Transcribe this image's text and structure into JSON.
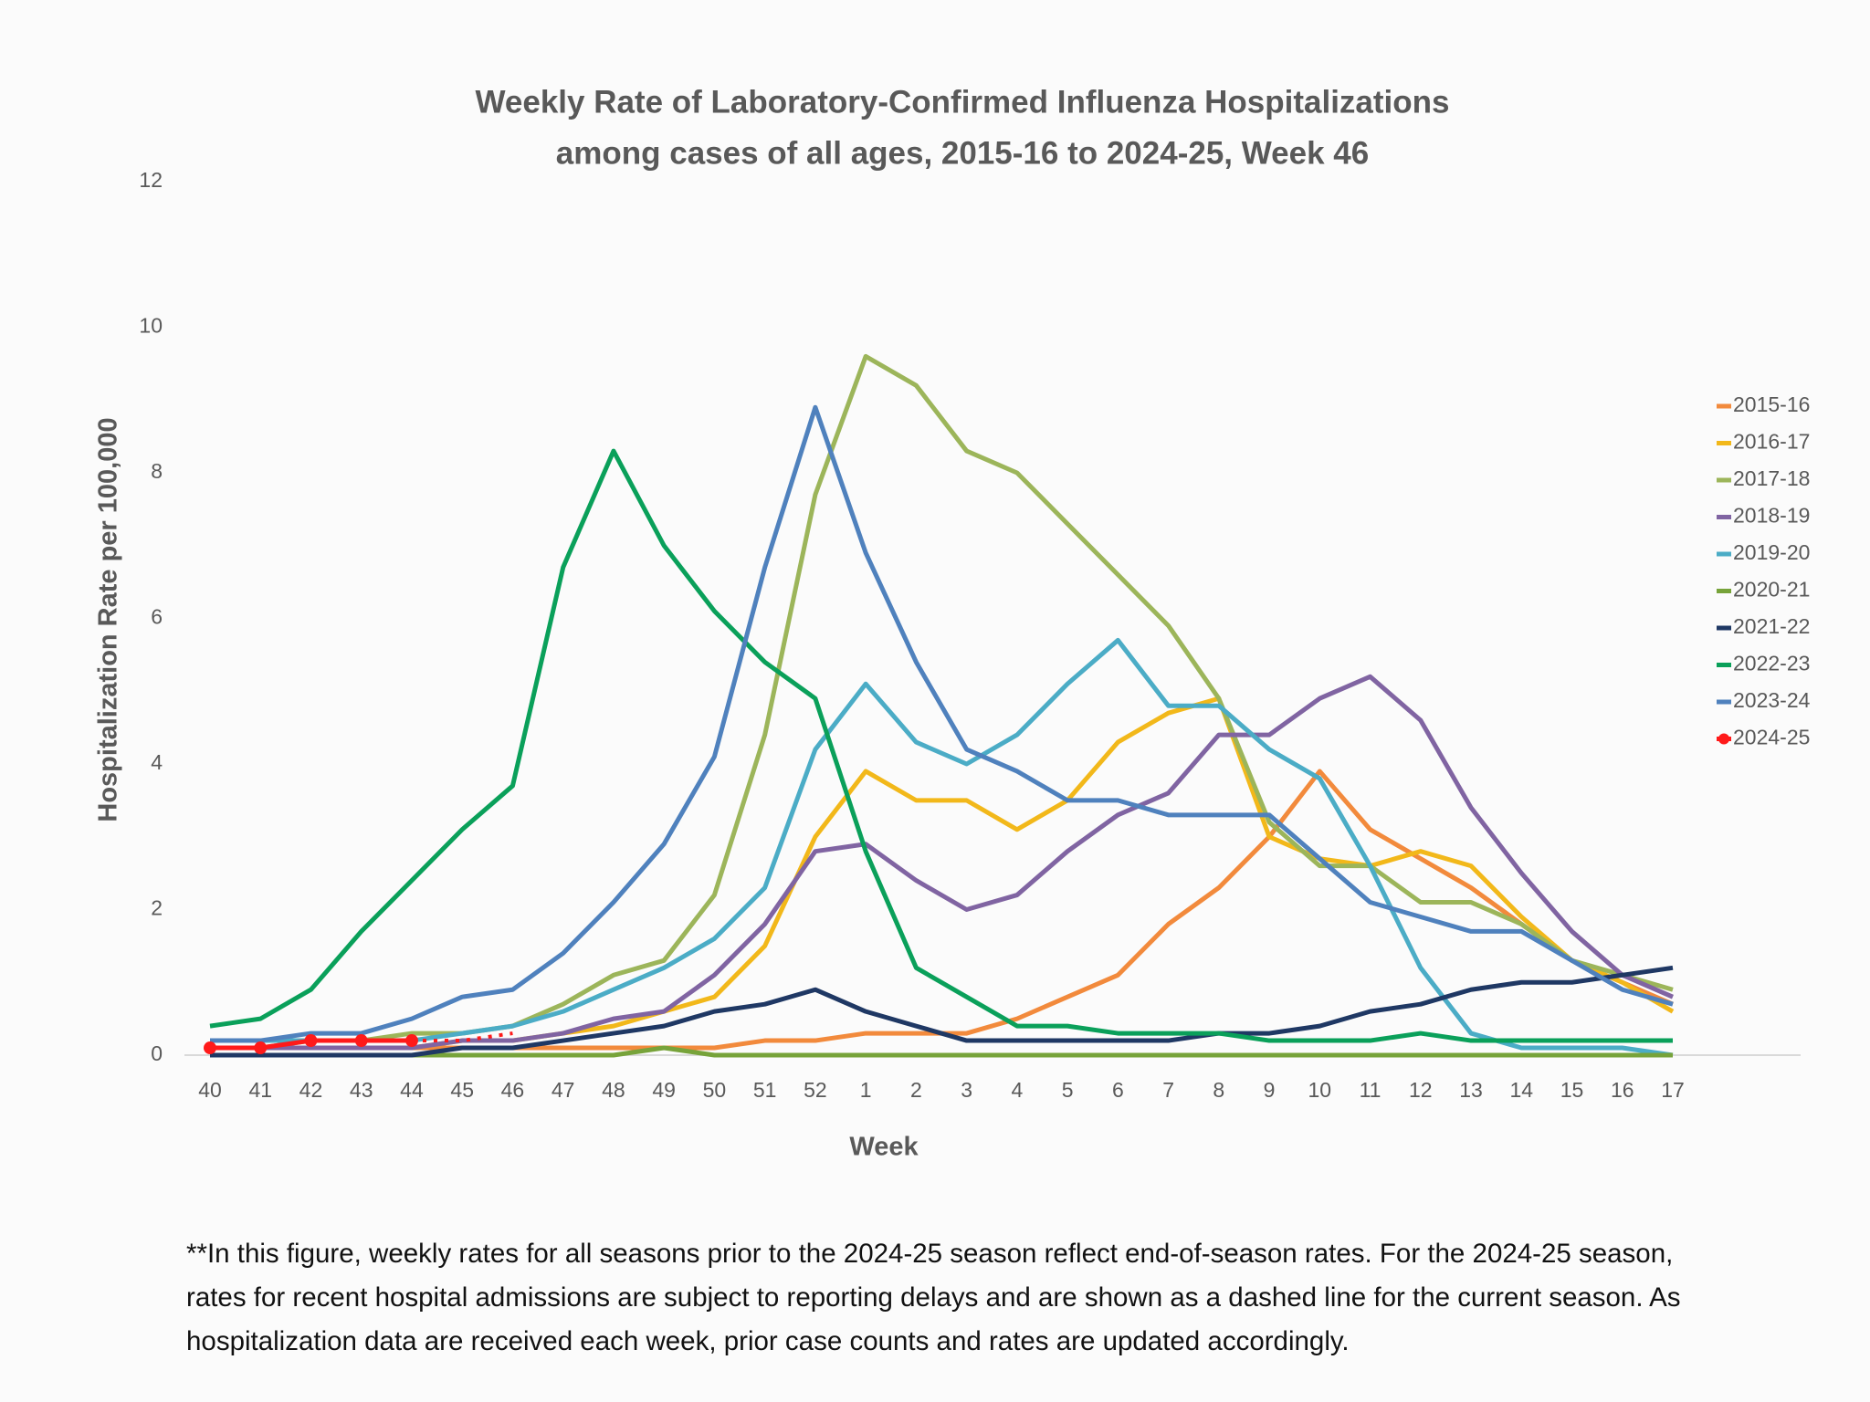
{
  "chart_data": {
    "type": "line",
    "title": [
      "Weekly Rate of Laboratory-Confirmed Influenza Hospitalizations",
      "among cases of all ages, 2015-16 to 2024-25, Week 46"
    ],
    "xlabel": "Week",
    "ylabel": "Hospitalization Rate per 100,000",
    "categories": [
      "40",
      "41",
      "42",
      "43",
      "44",
      "45",
      "46",
      "47",
      "48",
      "49",
      "50",
      "51",
      "52",
      "1",
      "2",
      "3",
      "4",
      "5",
      "6",
      "7",
      "8",
      "9",
      "10",
      "11",
      "12",
      "13",
      "14",
      "15",
      "16",
      "17"
    ],
    "ylim": [
      0,
      12
    ],
    "yticks": [
      0,
      2,
      4,
      6,
      8,
      10,
      12
    ],
    "grid": false,
    "legend": "right",
    "series": [
      {
        "name": "2015-16",
        "color": "#f28a3c",
        "values": [
          0.1,
          0.1,
          0.1,
          0.1,
          0.1,
          0.1,
          0.1,
          0.1,
          0.1,
          0.1,
          0.1,
          0.2,
          0.2,
          0.3,
          0.3,
          0.3,
          0.5,
          0.8,
          1.1,
          1.8,
          2.3,
          3.0,
          3.9,
          3.1,
          2.7,
          2.3,
          1.8,
          1.3,
          1.0,
          0.7
        ]
      },
      {
        "name": "2016-17",
        "color": "#f2b81a",
        "values": [
          0.1,
          0.1,
          0.1,
          0.1,
          0.1,
          0.2,
          0.2,
          0.3,
          0.4,
          0.6,
          0.8,
          1.5,
          3.0,
          3.9,
          3.5,
          3.5,
          3.1,
          3.5,
          4.3,
          4.7,
          4.9,
          3.0,
          2.7,
          2.6,
          2.8,
          2.6,
          1.9,
          1.3,
          1.0,
          0.6
        ]
      },
      {
        "name": "2017-18",
        "color": "#9cb55a",
        "values": [
          0.1,
          0.1,
          0.2,
          0.2,
          0.3,
          0.3,
          0.4,
          0.7,
          1.1,
          1.3,
          2.2,
          4.4,
          7.7,
          9.6,
          9.2,
          8.3,
          8.0,
          7.3,
          6.6,
          5.9,
          4.9,
          3.2,
          2.6,
          2.6,
          2.1,
          2.1,
          1.8,
          1.3,
          1.1,
          0.9
        ]
      },
      {
        "name": "2018-19",
        "color": "#8064a2",
        "values": [
          0.1,
          0.1,
          0.1,
          0.1,
          0.1,
          0.2,
          0.2,
          0.3,
          0.5,
          0.6,
          1.1,
          1.8,
          2.8,
          2.9,
          2.4,
          2.0,
          2.2,
          2.8,
          3.3,
          3.6,
          4.4,
          4.4,
          4.9,
          5.2,
          4.6,
          3.4,
          2.5,
          1.7,
          1.1,
          0.8
        ]
      },
      {
        "name": "2019-20",
        "color": "#4bacc6",
        "values": [
          0.2,
          0.2,
          0.2,
          0.2,
          0.2,
          0.3,
          0.4,
          0.6,
          0.9,
          1.2,
          1.6,
          2.3,
          4.2,
          5.1,
          4.3,
          4.0,
          4.4,
          5.1,
          5.7,
          4.8,
          4.8,
          4.2,
          3.8,
          2.6,
          1.2,
          0.3,
          0.1,
          0.1,
          0.1,
          0.0
        ]
      },
      {
        "name": "2020-21",
        "color": "#77a33a",
        "values": [
          0.0,
          0.0,
          0.0,
          0.0,
          0.0,
          0.0,
          0.0,
          0.0,
          0.0,
          0.1,
          0.0,
          0.0,
          0.0,
          0.0,
          0.0,
          0.0,
          0.0,
          0.0,
          0.0,
          0.0,
          0.0,
          0.0,
          0.0,
          0.0,
          0.0,
          0.0,
          0.0,
          0.0,
          0.0,
          0.0
        ]
      },
      {
        "name": "2021-22",
        "color": "#1f3864",
        "values": [
          0.0,
          0.0,
          0.0,
          0.0,
          0.0,
          0.1,
          0.1,
          0.2,
          0.3,
          0.4,
          0.6,
          0.7,
          0.9,
          0.6,
          0.4,
          0.2,
          0.2,
          0.2,
          0.2,
          0.2,
          0.3,
          0.3,
          0.4,
          0.6,
          0.7,
          0.9,
          1.0,
          1.0,
          1.1,
          1.2
        ]
      },
      {
        "name": "2022-23",
        "color": "#0aa05a",
        "values": [
          0.4,
          0.5,
          0.9,
          1.7,
          2.4,
          3.1,
          3.7,
          6.7,
          8.3,
          7.0,
          6.1,
          5.4,
          4.9,
          2.8,
          1.2,
          0.8,
          0.4,
          0.4,
          0.3,
          0.3,
          0.3,
          0.2,
          0.2,
          0.2,
          0.3,
          0.2,
          0.2,
          0.2,
          0.2,
          0.2
        ]
      },
      {
        "name": "2023-24",
        "color": "#4f81bd",
        "values": [
          0.2,
          0.2,
          0.3,
          0.3,
          0.5,
          0.8,
          0.9,
          1.4,
          2.1,
          2.9,
          4.1,
          6.7,
          8.9,
          6.9,
          5.4,
          4.2,
          3.9,
          3.5,
          3.5,
          3.3,
          3.3,
          3.3,
          2.7,
          2.1,
          1.9,
          1.7,
          1.7,
          1.3,
          0.9,
          0.7
        ]
      },
      {
        "name": "2024-25",
        "color": "#ff1a1a",
        "markers": true,
        "dashed_from": 4,
        "values": [
          0.1,
          0.1,
          0.2,
          0.2,
          0.2,
          0.2,
          0.3,
          null,
          null,
          null,
          null,
          null,
          null,
          null,
          null,
          null,
          null,
          null,
          null,
          null,
          null,
          null,
          null,
          null,
          null,
          null,
          null,
          null,
          null,
          null
        ]
      }
    ],
    "footnote": "**In this figure, weekly rates for all seasons prior to the 2024-25 season reflect end-of-season rates. For the 2024-25 season, rates for recent hospital admissions are subject to reporting delays and are shown as a dashed line for the current season. As hospitalization data are received each week, prior case counts and rates are updated accordingly."
  }
}
